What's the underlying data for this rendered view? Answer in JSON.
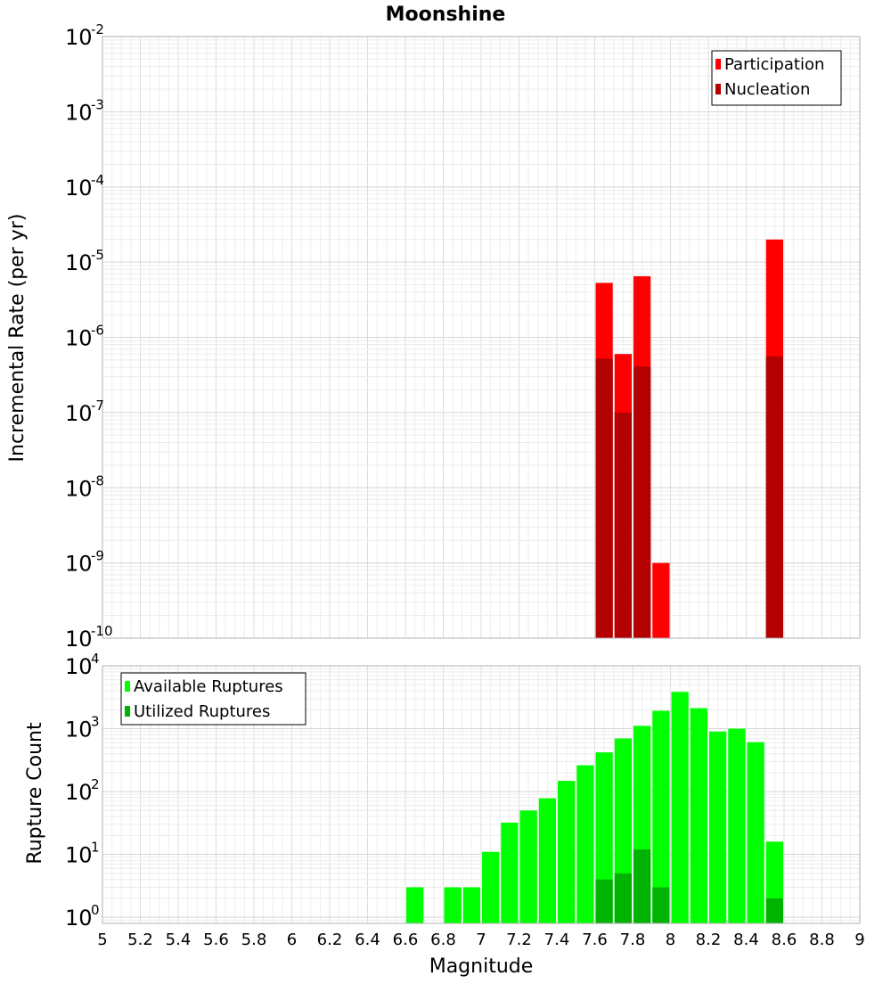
{
  "chart_data": [
    {
      "type": "bar",
      "title": "Moonshine",
      "xlabel": "",
      "ylabel": "Incremental Rate (per yr)",
      "yscale": "log",
      "ylim": [
        1e-10,
        0.01
      ],
      "xlim": [
        5,
        9
      ],
      "bin_width": 0.1,
      "grid": true,
      "legend_position": "top-right",
      "series": [
        {
          "name": "Participation",
          "color": "#ff0000",
          "points": [
            {
              "x": 7.65,
              "y": 5.3e-06
            },
            {
              "x": 7.75,
              "y": 6e-07
            },
            {
              "x": 7.85,
              "y": 6.5e-06
            },
            {
              "x": 7.95,
              "y": 1e-09
            },
            {
              "x": 8.55,
              "y": 2e-05
            }
          ]
        },
        {
          "name": "Nucleation",
          "color": "#b30000",
          "points": [
            {
              "x": 7.65,
              "y": 5.2e-07
            },
            {
              "x": 7.75,
              "y": 1e-07
            },
            {
              "x": 7.85,
              "y": 4.1e-07
            },
            {
              "x": 8.55,
              "y": 5.6e-07
            }
          ]
        }
      ],
      "y_ticks": [
        {
          "base": "10",
          "exp": "-10",
          "value": 1e-10
        },
        {
          "base": "10",
          "exp": "-9",
          "value": 1e-09
        },
        {
          "base": "10",
          "exp": "-8",
          "value": 1e-08
        },
        {
          "base": "10",
          "exp": "-7",
          "value": 1e-07
        },
        {
          "base": "10",
          "exp": "-6",
          "value": 1e-06
        },
        {
          "base": "10",
          "exp": "-5",
          "value": 1e-05
        },
        {
          "base": "10",
          "exp": "-4",
          "value": 0.0001
        },
        {
          "base": "10",
          "exp": "-3",
          "value": 0.001
        },
        {
          "base": "10",
          "exp": "-2",
          "value": 0.01
        }
      ]
    },
    {
      "type": "bar",
      "title": "",
      "xlabel": "Magnitude",
      "ylabel": "Rupture Count",
      "yscale": "log",
      "ylim": [
        0.8,
        10000
      ],
      "xlim": [
        5,
        9
      ],
      "bin_width": 0.1,
      "grid": true,
      "legend_position": "top-left",
      "series": [
        {
          "name": "Available Ruptures",
          "color": "#00ff00",
          "points": [
            {
              "x": 6.65,
              "y": 3
            },
            {
              "x": 6.85,
              "y": 3
            },
            {
              "x": 6.95,
              "y": 3
            },
            {
              "x": 7.05,
              "y": 11
            },
            {
              "x": 7.15,
              "y": 32
            },
            {
              "x": 7.25,
              "y": 50
            },
            {
              "x": 7.35,
              "y": 78
            },
            {
              "x": 7.45,
              "y": 148
            },
            {
              "x": 7.55,
              "y": 262
            },
            {
              "x": 7.65,
              "y": 420
            },
            {
              "x": 7.75,
              "y": 700
            },
            {
              "x": 7.85,
              "y": 1110
            },
            {
              "x": 7.95,
              "y": 1930
            },
            {
              "x": 8.05,
              "y": 3850
            },
            {
              "x": 8.15,
              "y": 2120
            },
            {
              "x": 8.25,
              "y": 900
            },
            {
              "x": 8.35,
              "y": 1000
            },
            {
              "x": 8.45,
              "y": 610
            },
            {
              "x": 8.55,
              "y": 16
            }
          ]
        },
        {
          "name": "Utilized Ruptures",
          "color": "#00b300",
          "points": [
            {
              "x": 7.65,
              "y": 4
            },
            {
              "x": 7.75,
              "y": 5
            },
            {
              "x": 7.85,
              "y": 12
            },
            {
              "x": 7.95,
              "y": 3
            },
            {
              "x": 8.55,
              "y": 2
            }
          ]
        }
      ],
      "y_ticks": [
        {
          "base": "10",
          "exp": "0",
          "value": 1
        },
        {
          "base": "10",
          "exp": "1",
          "value": 10
        },
        {
          "base": "10",
          "exp": "2",
          "value": 100
        },
        {
          "base": "10",
          "exp": "3",
          "value": 1000
        },
        {
          "base": "10",
          "exp": "4",
          "value": 10000
        }
      ],
      "x_ticks": [
        "5",
        "5.2",
        "5.4",
        "5.6",
        "5.8",
        "6",
        "6.2",
        "6.4",
        "6.6",
        "6.8",
        "7",
        "7.2",
        "7.4",
        "7.6",
        "7.8",
        "8",
        "8.2",
        "8.4",
        "8.6",
        "8.8",
        "9"
      ]
    }
  ]
}
